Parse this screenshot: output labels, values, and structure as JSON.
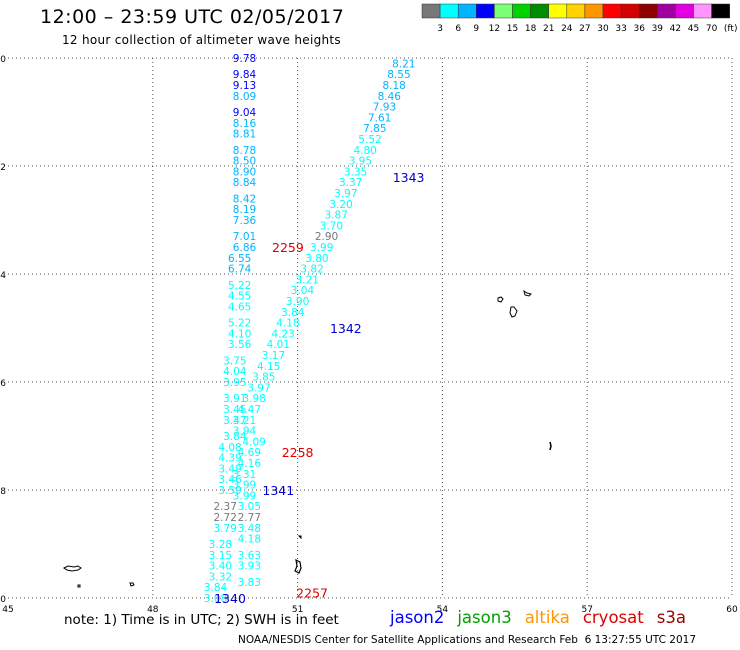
{
  "header": {
    "title": "12:00 – 23:59 UTC 02/05/2017",
    "subtitle": "12 hour collection of altimeter wave heights"
  },
  "legend": {
    "unit": "(ft)",
    "bins": [
      {
        "label": "3",
        "color": "#787878"
      },
      {
        "label": "6",
        "color": "#00ffff"
      },
      {
        "label": "9",
        "color": "#00b4ff"
      },
      {
        "label": "12",
        "color": "#0000ff"
      },
      {
        "label": "15",
        "color": "#7cff78"
      },
      {
        "label": "18",
        "color": "#00d200"
      },
      {
        "label": "21",
        "color": "#008c00"
      },
      {
        "label": "24",
        "color": "#ffff00"
      },
      {
        "label": "27",
        "color": "#ffd200"
      },
      {
        "label": "30",
        "color": "#ff9600"
      },
      {
        "label": "33",
        "color": "#ff0000"
      },
      {
        "label": "36",
        "color": "#d20000"
      },
      {
        "label": "39",
        "color": "#8c0000"
      },
      {
        "label": "42",
        "color": "#a000a0"
      },
      {
        "label": "45",
        "color": "#e100e1"
      },
      {
        "label": "70",
        "color": "#ff96ff"
      },
      {
        "label": "",
        "color": "#000000"
      }
    ]
  },
  "footer": {
    "note": "note: 1) Time is in UTC; 2) SWH is in feet",
    "satellites": [
      {
        "name": "jason2",
        "color": "#0000ff"
      },
      {
        "name": "jason3",
        "color": "#00a000"
      },
      {
        "name": "altika",
        "color": "#ff9600"
      },
      {
        "name": "cryosat",
        "color": "#dd0000"
      },
      {
        "name": "s3a",
        "color": "#990000"
      }
    ],
    "credit_left": "NOAA/NESDIS Center for Satellite Applications and Research",
    "credit_right": "Feb  6 13:27:55 UTC 2017"
  },
  "chart_data": {
    "type": "scatter",
    "xlim": [
      45,
      60
    ],
    "ylim": [
      -10,
      0
    ],
    "xticks": [
      "45",
      "48",
      "51",
      "54",
      "57",
      "60"
    ],
    "yticks": [
      "0",
      "-2",
      "-4",
      "-6",
      "-8",
      "-10"
    ],
    "grid": true,
    "tracks": [
      {
        "id": "track-a",
        "points": [
          {
            "x": 49.9,
            "y": 0.0,
            "v": "9.78"
          },
          {
            "x": 49.9,
            "y": -0.3,
            "v": "9.84"
          },
          {
            "x": 49.9,
            "y": -0.5,
            "v": "9.13"
          },
          {
            "x": 49.9,
            "y": -0.7,
            "v": "8.09"
          },
          {
            "x": 49.9,
            "y": -1.0,
            "v": "9.04"
          },
          {
            "x": 49.9,
            "y": -1.2,
            "v": "8.16"
          },
          {
            "x": 49.9,
            "y": -1.4,
            "v": "8.81"
          },
          {
            "x": 49.9,
            "y": -1.7,
            "v": "8.78"
          },
          {
            "x": 49.9,
            "y": -1.9,
            "v": "8.50"
          },
          {
            "x": 49.9,
            "y": -2.1,
            "v": "8.90"
          },
          {
            "x": 49.9,
            "y": -2.3,
            "v": "8.84"
          },
          {
            "x": 49.9,
            "y": -2.6,
            "v": "8.42"
          },
          {
            "x": 49.9,
            "y": -2.8,
            "v": "8.19"
          },
          {
            "x": 49.9,
            "y": -3.0,
            "v": "7.36"
          },
          {
            "x": 49.9,
            "y": -3.3,
            "v": "7.01"
          },
          {
            "x": 49.9,
            "y": -3.5,
            "v": "6.86"
          },
          {
            "x": 49.8,
            "y": -3.7,
            "v": "6.55"
          },
          {
            "x": 49.8,
            "y": -3.9,
            "v": "6.74"
          },
          {
            "x": 49.8,
            "y": -4.2,
            "v": "5.22"
          },
          {
            "x": 49.8,
            "y": -4.4,
            "v": "4.55"
          },
          {
            "x": 49.8,
            "y": -4.6,
            "v": "4.65"
          },
          {
            "x": 49.8,
            "y": -4.9,
            "v": "5.22"
          },
          {
            "x": 49.8,
            "y": -5.1,
            "v": "4.10"
          },
          {
            "x": 49.8,
            "y": -5.3,
            "v": "3.56"
          },
          {
            "x": 49.7,
            "y": -5.6,
            "v": "3.75"
          },
          {
            "x": 49.7,
            "y": -5.8,
            "v": "4.04"
          },
          {
            "x": 49.7,
            "y": -6.0,
            "v": "3.95"
          },
          {
            "x": 49.7,
            "y": -6.3,
            "v": "3.91"
          },
          {
            "x": 49.7,
            "y": -6.5,
            "v": "3.45"
          },
          {
            "x": 49.7,
            "y": -6.7,
            "v": "3.47"
          },
          {
            "x": 49.7,
            "y": -7.0,
            "v": "3.84"
          },
          {
            "x": 49.6,
            "y": -7.2,
            "v": "4.08"
          },
          {
            "x": 49.6,
            "y": -7.4,
            "v": "4.39"
          },
          {
            "x": 49.6,
            "y": -7.6,
            "v": "3.49"
          },
          {
            "x": 49.6,
            "y": -7.8,
            "v": "3.46"
          },
          {
            "x": 49.6,
            "y": -8.0,
            "v": "3.59"
          },
          {
            "x": 49.5,
            "y": -8.3,
            "v": "2.37"
          },
          {
            "x": 49.5,
            "y": -8.5,
            "v": "2.72"
          },
          {
            "x": 49.5,
            "y": -8.7,
            "v": "3.79"
          },
          {
            "x": 49.4,
            "y": -9.0,
            "v": "3.28"
          },
          {
            "x": 49.4,
            "y": -9.2,
            "v": "3.15"
          },
          {
            "x": 49.4,
            "y": -9.4,
            "v": "3.40"
          },
          {
            "x": 49.4,
            "y": -9.6,
            "v": "3.32"
          },
          {
            "x": 49.3,
            "y": -9.8,
            "v": "3.84"
          },
          {
            "x": 49.3,
            "y": -10.0,
            "v": "3.08"
          }
        ]
      },
      {
        "id": "track-b",
        "points": [
          {
            "x": 53.2,
            "y": -0.1,
            "v": "8.21"
          },
          {
            "x": 53.1,
            "y": -0.3,
            "v": "8.55"
          },
          {
            "x": 53.0,
            "y": -0.5,
            "v": "8.18"
          },
          {
            "x": 52.9,
            "y": -0.7,
            "v": "8.46"
          },
          {
            "x": 52.8,
            "y": -0.9,
            "v": "7.93"
          },
          {
            "x": 52.7,
            "y": -1.1,
            "v": "7.61"
          },
          {
            "x": 52.6,
            "y": -1.3,
            "v": "7.85"
          },
          {
            "x": 52.5,
            "y": -1.5,
            "v": "5.52"
          },
          {
            "x": 52.4,
            "y": -1.7,
            "v": "4.80"
          },
          {
            "x": 52.3,
            "y": -1.9,
            "v": "3.95"
          },
          {
            "x": 52.2,
            "y": -2.1,
            "v": "3.35"
          },
          {
            "x": 52.1,
            "y": -2.3,
            "v": "3.37"
          },
          {
            "x": 52.0,
            "y": -2.5,
            "v": "3.97"
          },
          {
            "x": 51.9,
            "y": -2.7,
            "v": "3.20"
          },
          {
            "x": 51.8,
            "y": -2.9,
            "v": "3.87"
          },
          {
            "x": 51.7,
            "y": -3.1,
            "v": "3.70"
          },
          {
            "x": 51.6,
            "y": -3.3,
            "v": "2.90"
          },
          {
            "x": 51.5,
            "y": -3.5,
            "v": "3.99"
          },
          {
            "x": 51.4,
            "y": -3.7,
            "v": "3.80"
          },
          {
            "x": 51.3,
            "y": -3.9,
            "v": "3.82"
          },
          {
            "x": 51.2,
            "y": -4.1,
            "v": "3.21"
          },
          {
            "x": 51.1,
            "y": -4.3,
            "v": "3.04"
          },
          {
            "x": 51.0,
            "y": -4.5,
            "v": "3.90"
          },
          {
            "x": 50.9,
            "y": -4.7,
            "v": "3.84"
          },
          {
            "x": 50.8,
            "y": -4.9,
            "v": "4.18"
          },
          {
            "x": 50.7,
            "y": -5.1,
            "v": "4.23"
          },
          {
            "x": 50.6,
            "y": -5.3,
            "v": "4.01"
          },
          {
            "x": 50.5,
            "y": -5.5,
            "v": "3.17"
          },
          {
            "x": 50.4,
            "y": -5.7,
            "v": "4.15"
          },
          {
            "x": 50.3,
            "y": -5.9,
            "v": "3.85"
          },
          {
            "x": 50.2,
            "y": -6.1,
            "v": "3.97"
          },
          {
            "x": 50.1,
            "y": -6.3,
            "v": "3.98"
          },
          {
            "x": 50.0,
            "y": -6.5,
            "v": "4.47"
          },
          {
            "x": 49.9,
            "y": -6.7,
            "v": "3.21"
          },
          {
            "x": 49.9,
            "y": -6.9,
            "v": "3.94"
          },
          {
            "x": 50.1,
            "y": -7.1,
            "v": "4.09"
          },
          {
            "x": 50.0,
            "y": -7.3,
            "v": "4.69"
          },
          {
            "x": 50.0,
            "y": -7.5,
            "v": "4.16"
          },
          {
            "x": 49.9,
            "y": -7.7,
            "v": "3.31"
          },
          {
            "x": 49.9,
            "y": -7.9,
            "v": "3.99"
          },
          {
            "x": 49.9,
            "y": -8.1,
            "v": "3.99"
          },
          {
            "x": 50.0,
            "y": -8.3,
            "v": "3.05"
          },
          {
            "x": 50.0,
            "y": -8.5,
            "v": "2.77"
          },
          {
            "x": 50.0,
            "y": -8.7,
            "v": "3.48"
          },
          {
            "x": 50.0,
            "y": -8.9,
            "v": "4.18"
          },
          {
            "x": 50.0,
            "y": -9.2,
            "v": "3.63"
          },
          {
            "x": 50.0,
            "y": -9.4,
            "v": "3.93"
          },
          {
            "x": 50.0,
            "y": -9.7,
            "v": "3.83"
          }
        ]
      }
    ],
    "times": [
      {
        "text": "1343",
        "x": 53.3,
        "y": -2.2,
        "color": "#0000cc"
      },
      {
        "text": "1342",
        "x": 52.0,
        "y": -5.0,
        "color": "#0000cc"
      },
      {
        "text": "1341",
        "x": 50.6,
        "y": -8.0,
        "color": "#0000cc"
      },
      {
        "text": "1340",
        "x": 49.6,
        "y": -10.0,
        "color": "#0000cc"
      },
      {
        "text": "2259",
        "x": 50.8,
        "y": -3.5,
        "color": "#dd0000"
      },
      {
        "text": "2258",
        "x": 51.0,
        "y": -7.3,
        "color": "#dd0000"
      },
      {
        "text": "2257",
        "x": 51.3,
        "y": -9.9,
        "color": "#dd0000"
      }
    ]
  }
}
